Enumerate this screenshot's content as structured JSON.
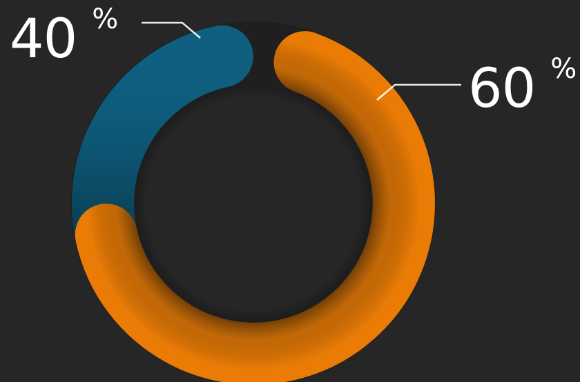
{
  "chart_data": {
    "type": "pie",
    "variant": "donut",
    "slices": [
      {
        "value": 40,
        "label": "40",
        "unit": "%",
        "color": "#0f5f80"
      },
      {
        "value": 60,
        "label": "60",
        "unit": "%",
        "color": "#ea7c06"
      }
    ],
    "background": "#262626"
  }
}
